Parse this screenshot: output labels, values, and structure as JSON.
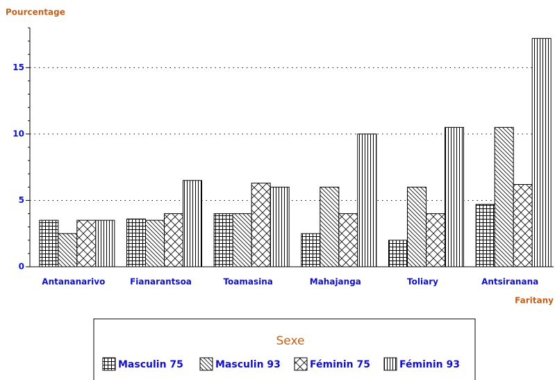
{
  "chart_data": {
    "type": "bar",
    "y_label": "Pourcentage",
    "x_label": "Faritany",
    "categories": [
      "Antananarivo",
      "Fianarantsoa",
      "Toamasina",
      "Mahajanga",
      "Toliary",
      "Antsiranana"
    ],
    "series": [
      {
        "name": "Masculin 75",
        "color": "#000000",
        "pattern": "grid",
        "values": [
          3.5,
          3.6,
          4.0,
          2.5,
          2.0,
          4.7
        ]
      },
      {
        "name": "Masculin 93",
        "color": "#000000",
        "pattern": "diagonal",
        "values": [
          2.5,
          3.5,
          4.0,
          6.0,
          6.0,
          10.5
        ]
      },
      {
        "name": "Féminin 75",
        "color": "#000000",
        "pattern": "crossdiag",
        "values": [
          3.5,
          4.0,
          6.3,
          4.0,
          4.0,
          6.2
        ]
      },
      {
        "name": "Féminin 93",
        "color": "#000000",
        "pattern": "vertical",
        "values": [
          3.5,
          6.5,
          6.0,
          10.0,
          10.5,
          17.2
        ]
      }
    ],
    "ylim": [
      0,
      18
    ],
    "yticks": [
      0,
      5,
      10,
      15
    ],
    "yticks_minor": [
      1,
      2,
      3,
      4,
      6,
      7,
      8,
      9,
      11,
      12,
      13,
      14,
      16,
      17,
      18
    ],
    "grid": true,
    "legend_title": "Sexe",
    "legend_position": "bottom"
  }
}
